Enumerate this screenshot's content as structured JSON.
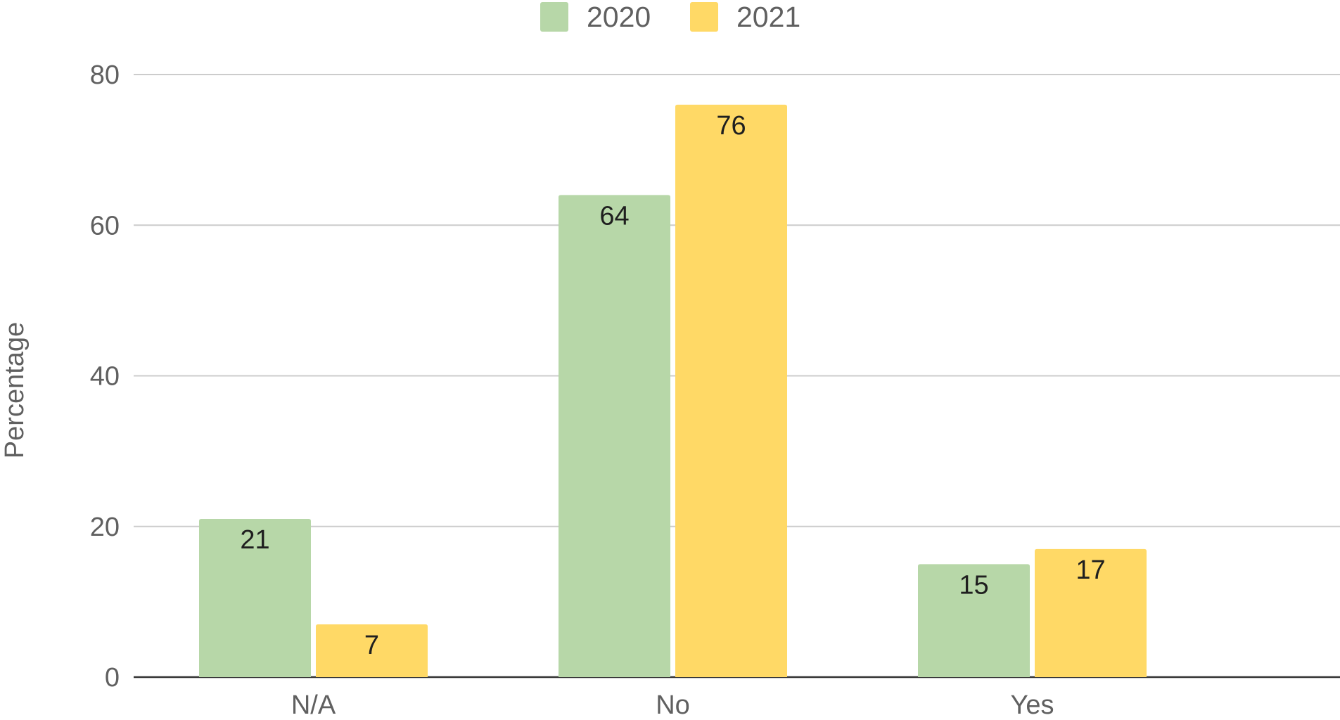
{
  "chart_data": {
    "type": "bar",
    "categories": [
      "N/A",
      "No",
      "Yes"
    ],
    "series": [
      {
        "name": "2020",
        "values": [
          21,
          64,
          15
        ],
        "color": "#b7d7a8"
      },
      {
        "name": "2021",
        "values": [
          7,
          76,
          17
        ],
        "color": "#ffd966"
      }
    ],
    "data_labels": [
      [
        "21",
        "64",
        "15"
      ],
      [
        "7",
        "76",
        "17"
      ]
    ],
    "title": "",
    "xlabel": "",
    "ylabel": "Percentage",
    "ylim": [
      0,
      80
    ],
    "yticks": [
      "0",
      "20",
      "40",
      "60",
      "80"
    ],
    "grid": true,
    "legend_position": "top-center",
    "gridline_color": "#cccccc",
    "baseline_color": "#333333"
  }
}
